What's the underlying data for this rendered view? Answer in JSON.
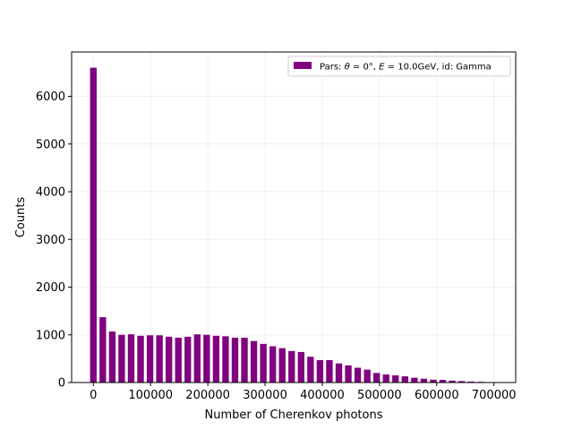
{
  "chart_data": {
    "type": "bar",
    "xlabel": "Number of Cherenkov photons",
    "ylabel": "Counts",
    "xlim": [
      -38000,
      738000
    ],
    "ylim": [
      0,
      6930
    ],
    "xticks": [
      0,
      100000,
      200000,
      300000,
      400000,
      500000,
      600000,
      700000
    ],
    "yticks": [
      0,
      1000,
      2000,
      3000,
      4000,
      5000,
      6000
    ],
    "grid": true,
    "legend_position": "top-right",
    "bar_color": "#800080",
    "bar_width": 11500,
    "series": [
      {
        "name": "Pars: θ = 0°, E = 10.0GeV, id: Gamma",
        "x": [
          0,
          16500,
          33000,
          49500,
          66000,
          82500,
          99000,
          115500,
          132000,
          148500,
          165000,
          181500,
          198000,
          214500,
          231000,
          247500,
          264000,
          280500,
          297000,
          313500,
          330000,
          346500,
          363000,
          379500,
          396000,
          412500,
          429000,
          445500,
          462000,
          478500,
          495000,
          511500,
          528000,
          544500,
          561000,
          577500,
          594000,
          610500,
          627000,
          643500,
          660000,
          676500,
          693000
        ],
        "values": [
          6600,
          1370,
          1070,
          1000,
          1010,
          980,
          990,
          990,
          960,
          940,
          960,
          1010,
          1000,
          980,
          970,
          940,
          940,
          870,
          810,
          760,
          720,
          660,
          640,
          540,
          470,
          470,
          400,
          360,
          310,
          270,
          200,
          170,
          150,
          130,
          100,
          80,
          60,
          55,
          40,
          30,
          20,
          15,
          10
        ]
      }
    ],
    "legend": {
      "prefix": "Pars: ",
      "theta": "θ",
      "theta_eq": " = 0°, ",
      "energy_sym": "E",
      "energy_eq": " = 10.0GeV, id: Gamma"
    }
  }
}
